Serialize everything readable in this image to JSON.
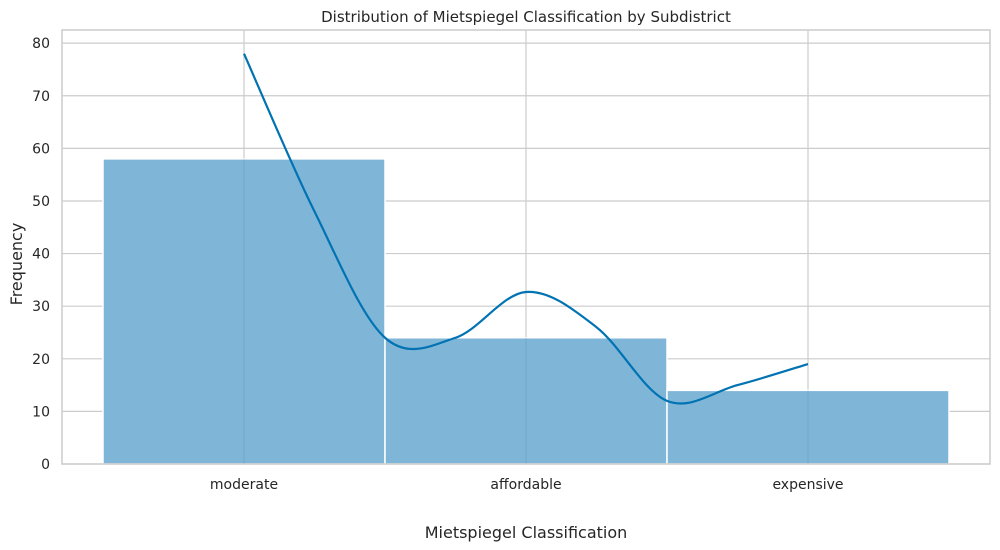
{
  "chart_data": {
    "type": "bar",
    "title": "Distribution of Mietspiegel Classification by Subdistrict",
    "xlabel": "Mietspiegel Classification",
    "ylabel": "Frequency",
    "categories": [
      "moderate",
      "affordable",
      "expensive"
    ],
    "values": [
      58,
      24,
      14
    ],
    "ylim": [
      0,
      82.5
    ],
    "yticks": [
      "0",
      "10",
      "20",
      "30",
      "40",
      "50",
      "60",
      "70",
      "80"
    ],
    "grid": true,
    "kde": {
      "x": [
        "moderate",
        0.25,
        0.5,
        0.75,
        "affordable",
        1.25,
        1.5,
        1.75,
        "expensive"
      ],
      "y": [
        78,
        48,
        24,
        24,
        32.7,
        26,
        12,
        15,
        19
      ]
    },
    "colors": {
      "bar_fill": "#7fb6d8",
      "bar_stroke": "#ffffff",
      "kde_line": "#0173b2",
      "grid": "#cccccc",
      "axis_edge": "#cccccc"
    }
  }
}
